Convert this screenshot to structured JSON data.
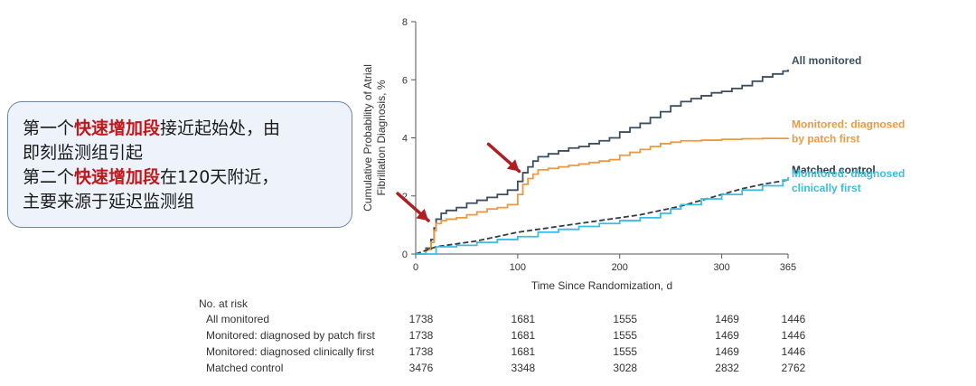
{
  "callout": {
    "line1_pre": "第一个",
    "line1_hl": "快速增加段",
    "line1_post": "接近起始处，由",
    "line2": "即刻监测组引起",
    "line3_pre": "第二个",
    "line3_hl": "快速增加段",
    "line3_post": "在120天附近，",
    "line4": "主要来源于延迟监测组"
  },
  "colors": {
    "all_monitored": "#3d4f5f",
    "patch_first": "#eb9a44",
    "matched_control": "#2f3b46",
    "clinically_first": "#3bbde0",
    "arrow": "#b01e24"
  },
  "chart_data": {
    "type": "line",
    "title": "",
    "xlabel": "Time Since Randomization, d",
    "ylabel_line1": "Cumulative Probability of Atrial",
    "ylabel_line2": "Fibrillation Diagnosis, %",
    "xlim": [
      0,
      365
    ],
    "ylim": [
      0,
      8
    ],
    "xticks": [
      "0",
      "100",
      "200",
      "300",
      "365"
    ],
    "yticks": [
      "0",
      "2",
      "4",
      "6",
      "8"
    ],
    "series": [
      {
        "name": "All monitored",
        "style": "step",
        "color": "#3d4f5f",
        "x": [
          0,
          10,
          15,
          18,
          20,
          25,
          30,
          40,
          50,
          60,
          70,
          80,
          90,
          100,
          105,
          110,
          115,
          120,
          130,
          140,
          150,
          160,
          170,
          180,
          190,
          200,
          210,
          220,
          230,
          240,
          250,
          260,
          270,
          280,
          290,
          300,
          310,
          320,
          330,
          340,
          350,
          360,
          365
        ],
        "y": [
          0,
          0.2,
          0.5,
          0.9,
          1.2,
          1.4,
          1.5,
          1.6,
          1.75,
          1.85,
          1.95,
          2.05,
          2.2,
          2.5,
          2.8,
          3.0,
          3.2,
          3.35,
          3.45,
          3.55,
          3.65,
          3.7,
          3.8,
          3.9,
          4.0,
          4.2,
          4.35,
          4.5,
          4.7,
          4.9,
          5.1,
          5.25,
          5.35,
          5.45,
          5.55,
          5.6,
          5.7,
          5.8,
          5.95,
          6.1,
          6.2,
          6.3,
          6.35
        ]
      },
      {
        "name": "Monitored: diagnosed by patch first",
        "style": "step",
        "color": "#eb9a44",
        "x": [
          0,
          10,
          15,
          18,
          20,
          25,
          30,
          40,
          50,
          60,
          70,
          80,
          90,
          100,
          105,
          110,
          115,
          120,
          130,
          140,
          150,
          160,
          170,
          180,
          190,
          200,
          210,
          220,
          230,
          240,
          250,
          260,
          280,
          300,
          320,
          340,
          365
        ],
        "y": [
          0,
          0.15,
          0.4,
          0.8,
          1.05,
          1.15,
          1.2,
          1.25,
          1.35,
          1.45,
          1.55,
          1.6,
          1.7,
          2.05,
          2.4,
          2.6,
          2.75,
          2.9,
          2.95,
          3.0,
          3.05,
          3.1,
          3.15,
          3.2,
          3.25,
          3.4,
          3.5,
          3.6,
          3.7,
          3.8,
          3.85,
          3.9,
          3.92,
          3.95,
          3.97,
          3.98,
          4.0
        ]
      },
      {
        "name": "Matched control",
        "style": "dashed",
        "color": "#2f3b46",
        "x": [
          0,
          20,
          40,
          60,
          80,
          100,
          120,
          140,
          160,
          180,
          200,
          220,
          240,
          260,
          280,
          300,
          320,
          340,
          365
        ],
        "y": [
          0,
          0.25,
          0.35,
          0.45,
          0.6,
          0.75,
          0.85,
          0.95,
          1.05,
          1.15,
          1.25,
          1.35,
          1.5,
          1.65,
          1.85,
          2.05,
          2.25,
          2.4,
          2.55
        ]
      },
      {
        "name": "Monitored: diagnosed clinically first",
        "style": "step",
        "color": "#3bbde0",
        "x": [
          0,
          20,
          40,
          60,
          80,
          100,
          120,
          140,
          160,
          180,
          200,
          220,
          240,
          250,
          260,
          280,
          300,
          320,
          340,
          360,
          365
        ],
        "y": [
          0,
          0.25,
          0.3,
          0.4,
          0.5,
          0.6,
          0.75,
          0.85,
          0.95,
          1.05,
          1.15,
          1.25,
          1.4,
          1.55,
          1.7,
          1.9,
          2.05,
          2.2,
          2.35,
          2.55,
          2.65
        ]
      }
    ],
    "legend": [
      {
        "lines": [
          "All monitored"
        ],
        "color": "#3d4f5f"
      },
      {
        "lines": [
          "Monitored: diagnosed",
          "by patch first"
        ],
        "color": "#eb9a44"
      },
      {
        "lines": [
          "Matched control"
        ],
        "color": "#2f3b46"
      },
      {
        "lines": [
          "Monitored: diagnosed",
          "clinically first"
        ],
        "color": "#3bbde0"
      }
    ],
    "arrows": [
      {
        "x": 16,
        "y": 0.9
      },
      {
        "x": 105,
        "y": 2.6
      }
    ],
    "risk_table": {
      "header": "No. at risk",
      "time_points": [
        0,
        100,
        200,
        300,
        365
      ],
      "rows": [
        {
          "label": "All monitored",
          "values": [
            "1738",
            "1681",
            "1555",
            "1469",
            "1446"
          ]
        },
        {
          "label": "Monitored: diagnosed by patch first",
          "values": [
            "1738",
            "1681",
            "1555",
            "1469",
            "1446"
          ]
        },
        {
          "label": "Monitored: diagnosed clinically first",
          "values": [
            "1738",
            "1681",
            "1555",
            "1469",
            "1446"
          ]
        },
        {
          "label": "Matched control",
          "values": [
            "3476",
            "3348",
            "3028",
            "2832",
            "2762"
          ]
        }
      ]
    }
  }
}
